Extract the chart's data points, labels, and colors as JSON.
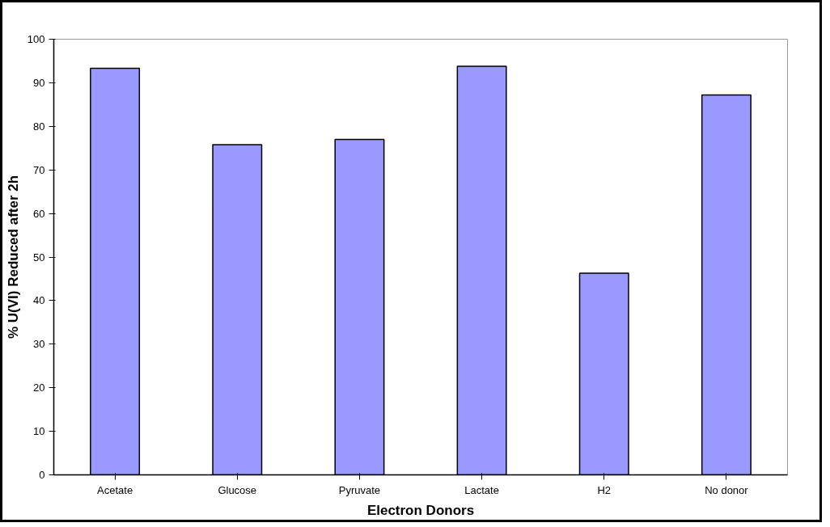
{
  "chart_data": {
    "type": "bar",
    "xlabel": "Electron Donors",
    "ylabel": "% U(VI) Reduced after 2h",
    "categories": [
      "Acetate",
      "Glucose",
      "Pyruvate",
      "Lactate",
      "H2",
      "No donor"
    ],
    "values": [
      93.3,
      75.8,
      77,
      93.8,
      46.3,
      87.2
    ],
    "color": "#9999ff",
    "ylim": [
      0,
      100
    ],
    "yticks": [
      0,
      10,
      20,
      30,
      40,
      50,
      60,
      70,
      80,
      90,
      100
    ],
    "grid": false
  }
}
